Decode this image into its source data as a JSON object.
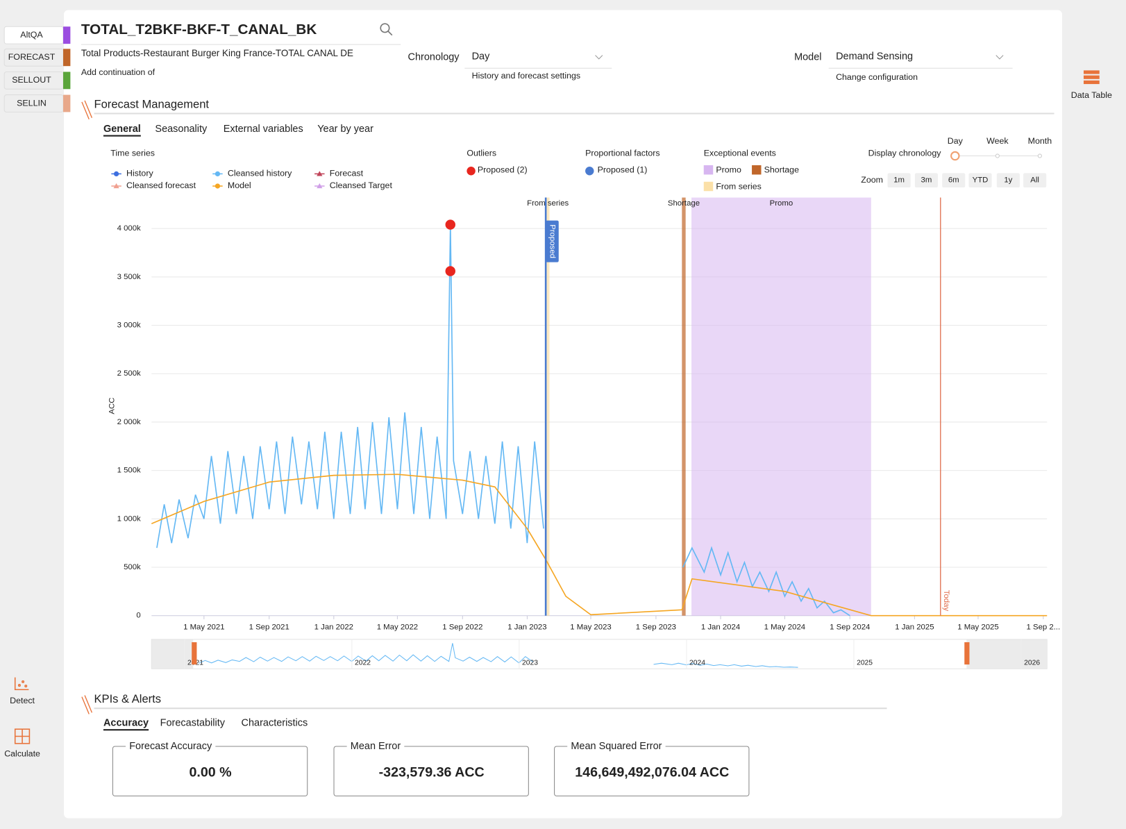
{
  "sidebar": {
    "tabs": [
      {
        "label": "AltQA",
        "color": "#9b4de0"
      },
      {
        "label": "FORECAST",
        "color": "#c0662a"
      },
      {
        "label": "SELLOUT",
        "color": "#5aa53a"
      },
      {
        "label": "SELLIN",
        "color": "#e8a88a"
      }
    ],
    "tools": [
      "Detect",
      "Calculate"
    ]
  },
  "header": {
    "title": "TOTAL_T2BKF-BKF-T_CANAL_BK",
    "description": "Total Products-Restaurant Burger King France-TOTAL CANAL DE",
    "continuation": "Add continuation of",
    "chronology_label": "Chronology",
    "chronology_value": "Day",
    "chronology_hint": "History and forecast settings",
    "model_label": "Model",
    "model_value": "Demand Sensing",
    "model_hint": "Change configuration",
    "data_table": "Data Table"
  },
  "forecast_section": {
    "title": "Forecast Management",
    "tabs": [
      "General",
      "Seasonality",
      "External variables",
      "Year by year"
    ],
    "time_series_label": "Time series",
    "outliers_label": "Outliers",
    "outliers_legend": "Proposed (2)",
    "factors_label": "Proportional factors",
    "factors_legend": "Proposed (1)",
    "events_label": "Exceptional events",
    "display_label": "Display chronology",
    "display_options": [
      "Day",
      "Week",
      "Month"
    ],
    "zoom_label": "Zoom",
    "zoom_options": [
      "1m",
      "3m",
      "6m",
      "YTD",
      "1y",
      "All"
    ]
  },
  "chart_data": {
    "type": "line",
    "y_label": "ACC",
    "xlim": [
      "2021-01-22",
      "2025-09-08"
    ],
    "ylim": [
      0,
      4320000
    ],
    "yticks": [
      0,
      {
        "value": 500000,
        "label": "500k"
      },
      {
        "value": 1000000,
        "label": "1 000k"
      },
      {
        "value": 1500000,
        "label": "1 500k"
      },
      {
        "value": 2000000,
        "label": "2 000k"
      },
      {
        "value": 2500000,
        "label": "2 500k"
      },
      {
        "value": 3000000,
        "label": "3 000k"
      },
      {
        "value": 3500000,
        "label": "3 500k"
      },
      {
        "value": 4000000,
        "label": "4 000k"
      }
    ],
    "xticks": [
      {
        "value": "2021-05-01",
        "label": "1 May 2021"
      },
      {
        "value": "2021-09-01",
        "label": "1 Sep 2021"
      },
      {
        "value": "2022-01-01",
        "label": "1 Jan 2022"
      },
      {
        "value": "2022-05-01",
        "label": "1 May 2022"
      },
      {
        "value": "2022-09-01",
        "label": "1 Sep 2022"
      },
      {
        "value": "2023-01-01",
        "label": "1 Jan 2023"
      },
      {
        "value": "2023-05-01",
        "label": "1 May 2023"
      },
      {
        "value": "2023-09-01",
        "label": "1 Sep 2023"
      },
      {
        "value": "2024-01-01",
        "label": "1 Jan 2024"
      },
      {
        "value": "2024-05-01",
        "label": "1 May 2024"
      },
      {
        "value": "2024-09-01",
        "label": "1 Sep 2024"
      },
      {
        "value": "2025-01-01",
        "label": "1 Jan 2025"
      },
      {
        "value": "2025-05-01",
        "label": "1 May 2025"
      },
      {
        "value": "2025-09-01",
        "label": "1 Sep 2..."
      }
    ],
    "grid": true,
    "other_series": [
      {
        "name": "History",
        "color": "#3d6fe0",
        "marker": "circle"
      },
      {
        "name": "Forecast",
        "color": "#c0455a",
        "marker": "triangle"
      },
      {
        "name": "Cleansed forecast",
        "color": "#f0a090",
        "marker": "triangle"
      },
      {
        "name": "Cleansed Target",
        "color": "#d0a0e8",
        "marker": "triangle"
      }
    ],
    "series": [
      {
        "name": "Cleansed history",
        "color": "#64b8f4",
        "x": [
          "2021-02-01",
          "2021-02-15",
          "2021-03-01",
          "2021-03-15",
          "2021-04-01",
          "2021-04-15",
          "2021-05-01",
          "2021-05-15",
          "2021-06-01",
          "2021-06-15",
          "2021-07-01",
          "2021-07-15",
          "2021-08-01",
          "2021-08-15",
          "2021-09-01",
          "2021-09-15",
          "2021-10-01",
          "2021-10-15",
          "2021-11-01",
          "2021-11-15",
          "2021-12-01",
          "2021-12-15",
          "2022-01-01",
          "2022-01-15",
          "2022-02-01",
          "2022-02-15",
          "2022-03-01",
          "2022-03-15",
          "2022-04-01",
          "2022-04-15",
          "2022-05-01",
          "2022-05-15",
          "2022-06-01",
          "2022-06-15",
          "2022-07-01",
          "2022-07-15",
          "2022-08-01",
          "2022-08-09",
          "2022-08-15",
          "2022-09-01",
          "2022-09-15",
          "2022-10-01",
          "2022-10-15",
          "2022-11-01",
          "2022-11-15",
          "2022-12-01",
          "2022-12-15",
          "2023-01-01",
          "2023-01-15",
          "2023-02-01",
          "2023-06-01",
          "2023-10-22",
          "2023-11-08",
          "2023-12-01",
          "2023-12-15",
          "2024-01-01",
          "2024-01-15",
          "2024-02-01",
          "2024-02-15",
          "2024-03-01",
          "2024-03-15",
          "2024-04-01",
          "2024-04-15",
          "2024-05-01",
          "2024-05-15",
          "2024-06-01",
          "2024-06-15",
          "2024-07-01",
          "2024-07-15",
          "2024-08-01",
          "2024-08-15",
          "2024-09-01"
        ],
        "values": [
          700000,
          1150000,
          750000,
          1200000,
          800000,
          1250000,
          1000000,
          1650000,
          950000,
          1700000,
          1050000,
          1650000,
          1000000,
          1750000,
          1100000,
          1800000,
          1050000,
          1850000,
          1150000,
          1800000,
          1100000,
          1900000,
          1000000,
          1900000,
          1050000,
          1950000,
          1100000,
          2000000,
          1050000,
          2050000,
          1100000,
          2100000,
          1050000,
          1950000,
          1000000,
          1850000,
          1000000,
          4040000,
          1600000,
          1050000,
          1700000,
          1000000,
          1650000,
          950000,
          1800000,
          900000,
          1750000,
          750000,
          1800000,
          900000,
          null,
          500000,
          700000,
          450000,
          700000,
          420000,
          650000,
          350000,
          550000,
          300000,
          450000,
          250000,
          450000,
          200000,
          350000,
          150000,
          280000,
          80000,
          150000,
          30000,
          60000,
          0
        ]
      },
      {
        "name": "Model",
        "color": "#f5a623",
        "x": [
          "2021-01-22",
          "2021-05-01",
          "2021-09-01",
          "2022-01-01",
          "2022-05-01",
          "2022-09-01",
          "2022-11-01",
          "2023-01-01",
          "2023-02-05",
          "2023-03-15",
          "2023-05-01",
          "2023-10-20",
          "2023-11-08",
          "2024-05-01",
          "2024-10-11",
          "2025-09-08"
        ],
        "values": [
          950000,
          1180000,
          1380000,
          1450000,
          1460000,
          1400000,
          1330000,
          900000,
          580000,
          200000,
          10000,
          60000,
          380000,
          250000,
          0,
          0
        ]
      }
    ],
    "outliers": {
      "color": "#e8261e",
      "x": [
        "2022-08-09",
        "2022-08-09"
      ],
      "values": [
        4040000,
        3560000
      ]
    },
    "factors": [
      {
        "x": "2023-02-05",
        "label": "Proposed",
        "color": "#4a7bd0"
      }
    ],
    "events": [
      {
        "name": "Promo",
        "start": "2023-11-07",
        "end": "2024-10-11",
        "color": "#d7b6f0"
      },
      {
        "name": "Shortage",
        "start": "2023-10-20",
        "end": "2023-10-27",
        "color": "#c0662a"
      },
      {
        "name": "From series",
        "start": "2023-02-06",
        "end": "2023-02-12",
        "color": "#fbe0a8"
      }
    ],
    "today": {
      "x": "2025-02-19",
      "label": "Today",
      "color": "#e07050"
    },
    "navigator_labels": [
      "2021",
      "2022",
      "2023",
      "2024",
      "2025",
      "2026"
    ]
  },
  "kpi_section": {
    "title": "KPIs & Alerts",
    "tabs": [
      "Accuracy",
      "Forecastability",
      "Characteristics"
    ],
    "cards": [
      {
        "label": "Forecast Accuracy",
        "value": "0.00 %"
      },
      {
        "label": "Mean Error",
        "value": "-323,579.36 ACC"
      },
      {
        "label": "Mean Squared Error",
        "value": "146,649,492,076.04 ACC"
      }
    ]
  }
}
